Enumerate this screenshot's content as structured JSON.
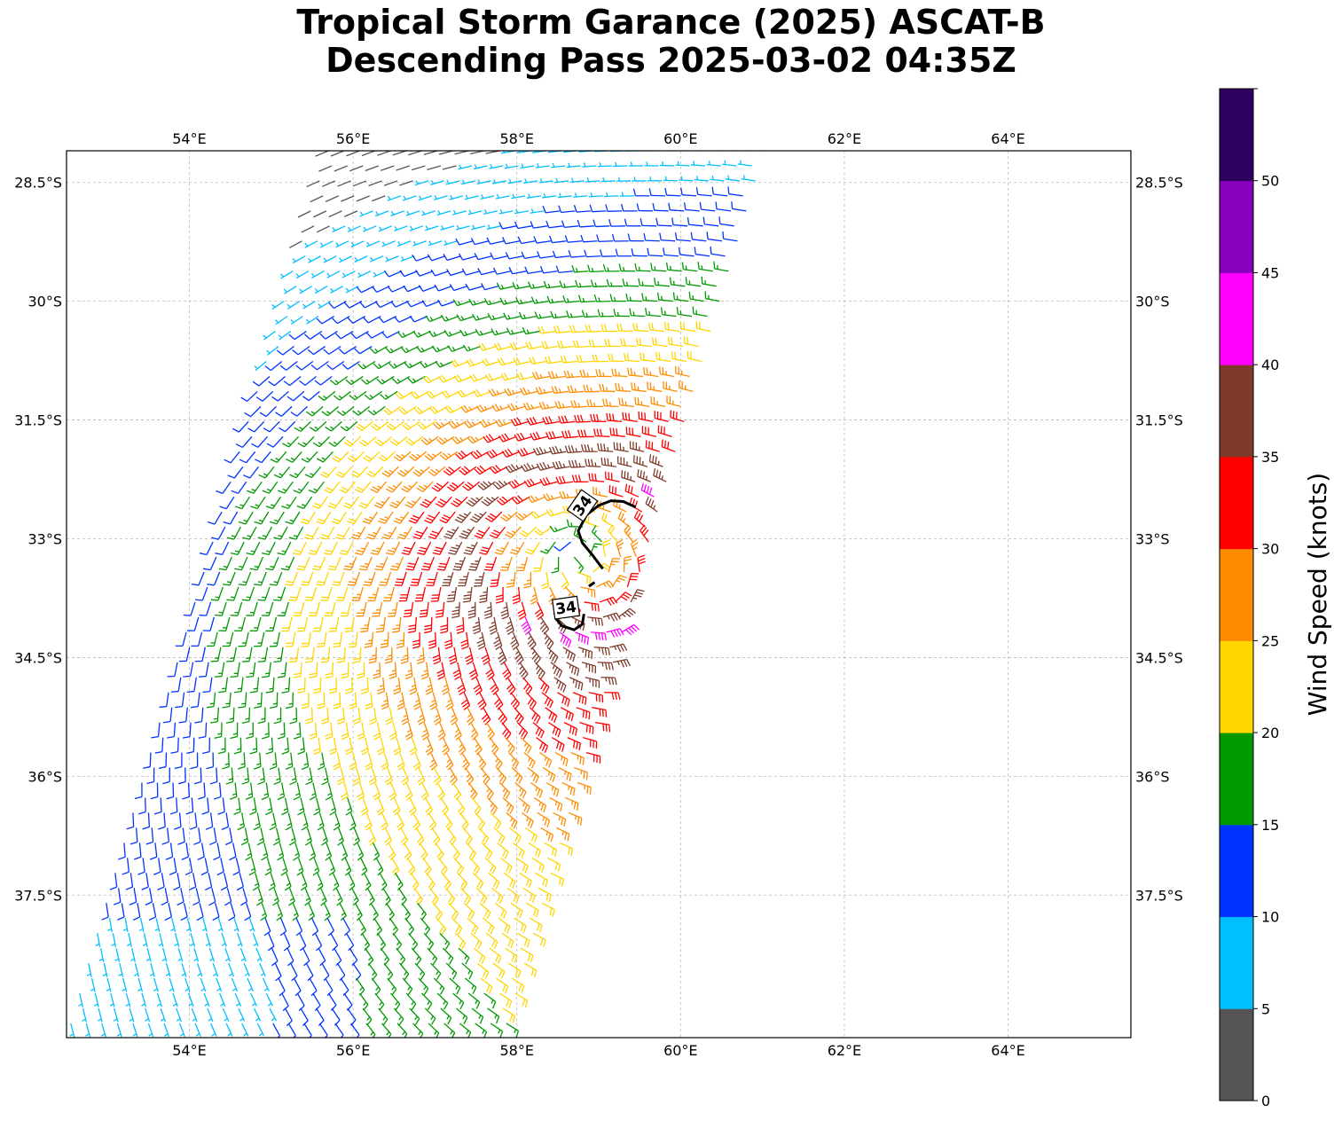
{
  "title": {
    "line1": "Tropical Storm Garance (2025) ASCAT-B",
    "line2": "Descending Pass 2025-03-02 04:35Z"
  },
  "map": {
    "lon_range": [
      52.5,
      65.5
    ],
    "lat_range": [
      -39.3,
      -28.1
    ],
    "lon_ticks": [
      {
        "value": 54,
        "label": "54°E"
      },
      {
        "value": 56,
        "label": "56°E"
      },
      {
        "value": 58,
        "label": "58°E"
      },
      {
        "value": 60,
        "label": "60°E"
      },
      {
        "value": 62,
        "label": "62°E"
      },
      {
        "value": 64,
        "label": "64°E"
      }
    ],
    "lat_ticks": [
      {
        "value": -28.5,
        "label": "28.5°S"
      },
      {
        "value": -30,
        "label": "30°S"
      },
      {
        "value": -31.5,
        "label": "31.5°S"
      },
      {
        "value": -33,
        "label": "33°S"
      },
      {
        "value": -34.5,
        "label": "34.5°S"
      },
      {
        "value": -36,
        "label": "36°S"
      },
      {
        "value": -37.5,
        "label": "37.5°S"
      }
    ],
    "grid": "dashed light gray",
    "contour": {
      "level_label": "34",
      "color": "#000000"
    }
  },
  "colorbar": {
    "label": "Wind Speed (knots)",
    "ticks": [
      "0",
      "5",
      "10",
      "15",
      "20",
      "25",
      "30",
      "35",
      "40",
      "45",
      "50"
    ],
    "bins": [
      {
        "min": 0,
        "max": 5,
        "color": "#555555"
      },
      {
        "min": 5,
        "max": 10,
        "color": "#00bfff"
      },
      {
        "min": 10,
        "max": 15,
        "color": "#0033ff"
      },
      {
        "min": 15,
        "max": 20,
        "color": "#009900"
      },
      {
        "min": 20,
        "max": 25,
        "color": "#ffd500"
      },
      {
        "min": 25,
        "max": 30,
        "color": "#ff8c00"
      },
      {
        "min": 30,
        "max": 35,
        "color": "#ff0000"
      },
      {
        "min": 35,
        "max": 40,
        "color": "#7f3b2a"
      },
      {
        "min": 40,
        "max": 45,
        "color": "#ff00ff"
      },
      {
        "min": 45,
        "max": 50,
        "color": "#8800bb"
      },
      {
        "min": 50,
        "max": 55,
        "color": "#2e0060"
      }
    ]
  },
  "wind_field": {
    "center": {
      "lon": 58.75,
      "lat": -33.1
    },
    "swath_west_edge": [
      {
        "lat": -28.1,
        "lon": 55.7
      },
      {
        "lat": -39.3,
        "lon": 52.5
      }
    ],
    "swath_east_edge": [
      {
        "lat": -28.1,
        "lon": 61.1
      },
      {
        "lat": -39.3,
        "lon": 57.9
      }
    ]
  }
}
